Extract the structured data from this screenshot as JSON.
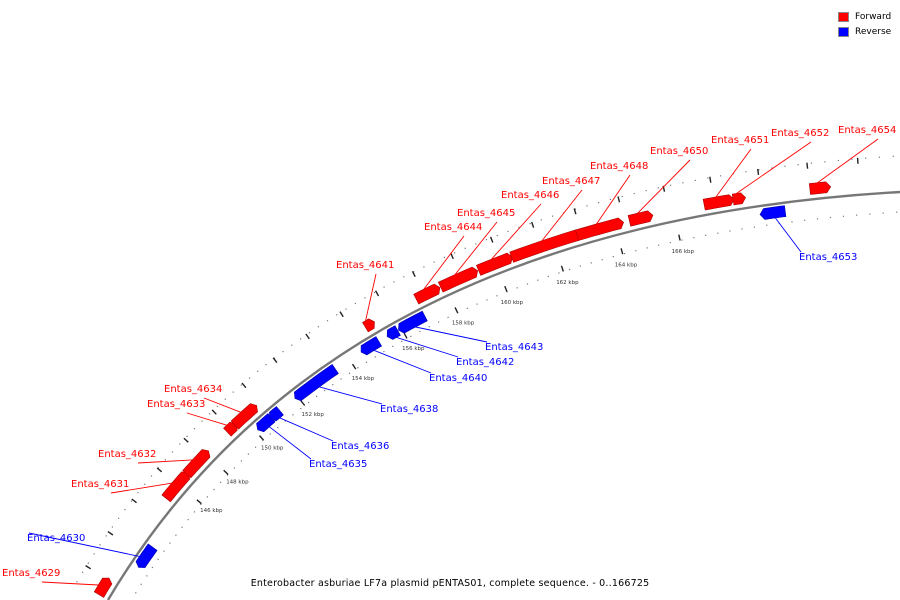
{
  "legend": {
    "forward_label": "Forward",
    "reverse_label": "Reverse",
    "forward_color": "#ff0000",
    "reverse_color": "#0000ff"
  },
  "caption": "Enterobacter asburiae LF7a plasmid pENTAS01, complete sequence. - 0..166725",
  "ticks": [
    "146 kbp",
    "148 kbp",
    "150 kbp",
    "152 kbp",
    "154 kbp",
    "156 kbp",
    "158 kbp",
    "160 kbp",
    "162 kbp",
    "164 kbp",
    "166 kbp"
  ],
  "genes": [
    {
      "name": "Entas_4629",
      "strand": "forward"
    },
    {
      "name": "Entas_4630",
      "strand": "reverse"
    },
    {
      "name": "Entas_4631",
      "strand": "forward"
    },
    {
      "name": "Entas_4632",
      "strand": "forward"
    },
    {
      "name": "Entas_4633",
      "strand": "forward"
    },
    {
      "name": "Entas_4634",
      "strand": "forward"
    },
    {
      "name": "Entas_4635",
      "strand": "reverse"
    },
    {
      "name": "Entas_4636",
      "strand": "reverse"
    },
    {
      "name": "Entas_4638",
      "strand": "reverse"
    },
    {
      "name": "Entas_4640",
      "strand": "reverse"
    },
    {
      "name": "Entas_4641",
      "strand": "forward"
    },
    {
      "name": "Entas_4642",
      "strand": "reverse"
    },
    {
      "name": "Entas_4643",
      "strand": "reverse"
    },
    {
      "name": "Entas_4644",
      "strand": "forward"
    },
    {
      "name": "Entas_4645",
      "strand": "forward"
    },
    {
      "name": "Entas_4646",
      "strand": "forward"
    },
    {
      "name": "Entas_4647",
      "strand": "forward"
    },
    {
      "name": "Entas_4648",
      "strand": "forward"
    },
    {
      "name": "Entas_4650",
      "strand": "forward"
    },
    {
      "name": "Entas_4651",
      "strand": "forward"
    },
    {
      "name": "Entas_4652",
      "strand": "forward"
    },
    {
      "name": "Entas_4653",
      "strand": "reverse"
    },
    {
      "name": "Entas_4654",
      "strand": "forward"
    }
  ]
}
